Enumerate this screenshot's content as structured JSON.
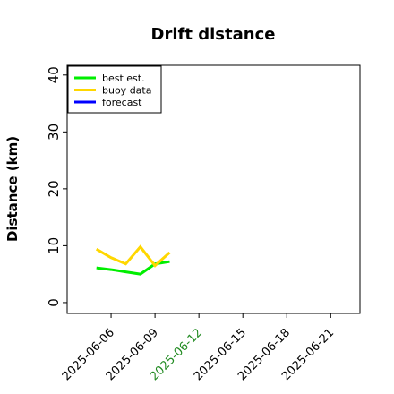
{
  "chart_data": {
    "type": "line",
    "title": "Drift distance",
    "y_label": "Distance (km)",
    "x": [
      "2025-06-05",
      "2025-06-06",
      "2025-06-07",
      "2025-06-08",
      "2025-06-09",
      "2025-06-10"
    ],
    "series": [
      {
        "name": "best est.",
        "color": "#00ee00",
        "values": [
          6.1,
          5.8,
          5.4,
          5.0,
          6.8,
          7.2
        ]
      },
      {
        "name": "buoy data",
        "color": "#ffd700",
        "values": [
          9.4,
          7.9,
          6.8,
          9.8,
          6.5,
          8.8
        ]
      },
      {
        "name": "forecast",
        "color": "#0000ff",
        "values": [
          null,
          null,
          null,
          null,
          null,
          null
        ]
      }
    ],
    "xlim": [
      "2025-06-03",
      "2025-06-23"
    ],
    "ylim": [
      -1.9,
      41.7
    ],
    "xticks": [
      "2025-06-06",
      "2025-06-09",
      "2025-06-12",
      "2025-06-15",
      "2025-06-18",
      "2025-06-21"
    ],
    "xtick_label_colors": [
      "#000000",
      "#000000",
      "#228b22",
      "#000000",
      "#000000",
      "#000000"
    ],
    "yticks": [
      0,
      10,
      20,
      30,
      40
    ],
    "legend": "upper left",
    "grid": false
  }
}
